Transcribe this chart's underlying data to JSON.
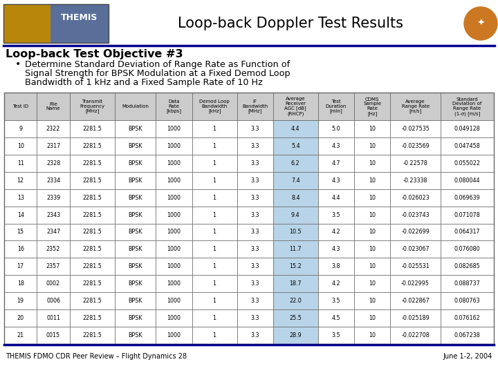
{
  "title": "Loop-back Doppler Test Results",
  "objective_title": "Loop-back Test Objective #3",
  "bullet_lines": [
    "Determine Standard Deviation of Range Rate as Function of",
    "Signal Strength for BPSK Modulation at a Fixed Demod Loop",
    "Bandwidth of 1 kHz and a Fixed Sample Rate of 10 Hz"
  ],
  "footer_left": "THEMIS FDMO CDR Peer Review – Flight Dynamics 28",
  "footer_right": "June 1-2, 2004",
  "col_headers": [
    "Test ID",
    "File\nName",
    "Transmit\nFrequency\n[MHz]",
    "Modulation",
    "Data\nRate\n[kbps]",
    "Demod Loop\nBandwidth\n[kHz]",
    "IF\nBandwidth\n[MHz]",
    "Average\nReceiver\nAGC [dB]\n(RHCP)",
    "Test\nDuration\n[min]",
    "CDMS\nSample\nRate\n[Hz]",
    "Average\nRange Rate\n[m/s]",
    "Standard\nDeviation of\nRange Rate\n(1-σ) [m/s]"
  ],
  "rows": [
    [
      "9",
      "2322",
      "2281.5",
      "BPSK",
      "1000",
      "1",
      "3.3",
      "4.4",
      "5.0",
      "10",
      "-0.027535",
      "0.049128"
    ],
    [
      "10",
      "2317",
      "2281.5",
      "BPSK",
      "1000",
      "1",
      "3.3",
      "5.4",
      "4.3",
      "10",
      "-0.023569",
      "0.047458"
    ],
    [
      "11",
      "2328",
      "2281.5",
      "BPSK",
      "1000",
      "1",
      "3.3",
      "6.2",
      "4.7",
      "10",
      "-0.22578",
      "0.055022"
    ],
    [
      "12",
      "2334",
      "2281.5",
      "BPSK",
      "1000",
      "1",
      "3.3",
      "7.4",
      "4.3",
      "10",
      "-0.23338",
      "0.080044"
    ],
    [
      "13",
      "2339",
      "2281.5",
      "BPSK",
      "1000",
      "1",
      "3.3",
      "8.4",
      "4.4",
      "10",
      "-0.026023",
      "0.069639"
    ],
    [
      "14",
      "2343",
      "2281.5",
      "BPSK",
      "1000",
      "1",
      "3.3",
      "9.4",
      "3.5",
      "10",
      "-0.023743",
      "0.071078"
    ],
    [
      "15",
      "2347",
      "2281.5",
      "BPSK",
      "1000",
      "1",
      "3.3",
      "10.5",
      "4.2",
      "10",
      "-0.022699",
      "0.064317"
    ],
    [
      "16",
      "2352",
      "2281.5",
      "BPSK",
      "1000",
      "1",
      "3.3",
      "11.7",
      "4.3",
      "10",
      "-0.023067",
      "0.076080"
    ],
    [
      "17",
      "2357",
      "2281.5",
      "BPSK",
      "1000",
      "1",
      "3.3",
      "15.2",
      "3.8",
      "10",
      "-0.025531",
      "0.082685"
    ],
    [
      "18",
      "0002",
      "2281.5",
      "BPSK",
      "1000",
      "1",
      "3.3",
      "18.7",
      "4.2",
      "10",
      "-0.022995",
      "0.088737"
    ],
    [
      "19",
      "0006",
      "2281.5",
      "BPSK",
      "1000",
      "1",
      "3.3",
      "22.0",
      "3.5",
      "10",
      "-0.022867",
      "0.080763"
    ],
    [
      "20",
      "0011",
      "2281.5",
      "BPSK",
      "1000",
      "1",
      "3.3",
      "25.5",
      "4.5",
      "10",
      "-0.025189",
      "0.076162"
    ],
    [
      "21",
      "0015",
      "2281.5",
      "BPSK",
      "1000",
      "1",
      "3.3",
      "28.9",
      "3.5",
      "10",
      "-0.022708",
      "0.067238"
    ]
  ],
  "col_widths_rel": [
    3.8,
    3.8,
    5.2,
    4.8,
    4.2,
    5.2,
    4.2,
    5.2,
    4.2,
    4.2,
    5.8,
    6.2
  ],
  "header_bg": "#cccccc",
  "row_bg_normal": "#ffffff",
  "row_bg_highlight": "#b8d4e8",
  "highlight_col": 7,
  "border_color": "#666666",
  "title_color": "#000000",
  "separator_color": "#00008B",
  "bg_color": "#ffffff",
  "logo_blue": "#5a6e9a",
  "logo_gold": "#b8860b",
  "sat_orange": "#cc7722"
}
